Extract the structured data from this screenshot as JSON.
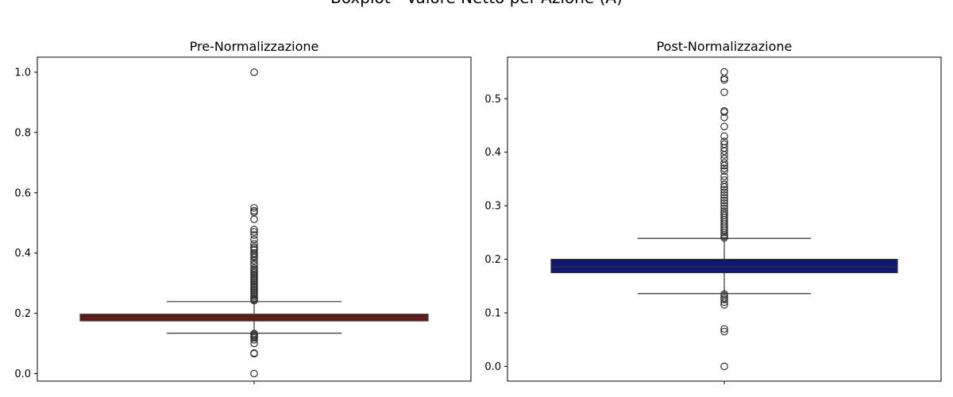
{
  "figure": {
    "title": "Boxplot - Valore Netto per Azione (A)"
  },
  "chart_data": [
    {
      "type": "boxplot",
      "title": "Pre-Normalizzazione",
      "xlabel": "",
      "ylabel": "",
      "ylim": [
        -0.025,
        1.05
      ],
      "yticks": [
        0.0,
        0.2,
        0.4,
        0.6,
        0.8,
        1.0
      ],
      "tick_labels": [
        "0.0",
        "0.2",
        "0.4",
        "0.6",
        "0.8",
        "1.0"
      ],
      "box_color": "#6b1414",
      "box": {
        "whislo": 0.134,
        "q1": 0.175,
        "median": 0.186,
        "q3": 0.197,
        "whishi": 0.239
      },
      "outliers_low": [
        0.0,
        0.066,
        0.068,
        0.1,
        0.112,
        0.118,
        0.122,
        0.126,
        0.13,
        0.133
      ],
      "outliers_high": [
        0.242,
        0.246,
        0.25,
        0.255,
        0.26,
        0.265,
        0.27,
        0.275,
        0.28,
        0.285,
        0.29,
        0.295,
        0.3,
        0.305,
        0.31,
        0.315,
        0.32,
        0.325,
        0.33,
        0.335,
        0.34,
        0.345,
        0.35,
        0.36,
        0.365,
        0.375,
        0.385,
        0.39,
        0.395,
        0.4,
        0.41,
        0.415,
        0.42,
        0.43,
        0.445,
        0.46,
        0.47,
        0.478,
        0.512,
        0.535,
        0.54,
        0.55,
        1.0
      ]
    },
    {
      "type": "boxplot",
      "title": "Post-Normalizzazione",
      "xlabel": "",
      "ylabel": "",
      "ylim": [
        -0.0275,
        0.5775
      ],
      "yticks": [
        0.0,
        0.1,
        0.2,
        0.3,
        0.4,
        0.5
      ],
      "tick_labels": [
        "0.0",
        "0.1",
        "0.2",
        "0.3",
        "0.4",
        "0.5"
      ],
      "box_color": "#101770",
      "box": {
        "whislo": 0.136,
        "q1": 0.175,
        "median": 0.186,
        "q3": 0.2,
        "whishi": 0.239
      },
      "outliers_low": [
        0.0,
        0.065,
        0.07,
        0.115,
        0.12,
        0.125,
        0.128,
        0.132,
        0.135
      ],
      "outliers_high": [
        0.24,
        0.243,
        0.246,
        0.25,
        0.254,
        0.258,
        0.262,
        0.266,
        0.27,
        0.274,
        0.278,
        0.282,
        0.286,
        0.29,
        0.295,
        0.3,
        0.305,
        0.31,
        0.315,
        0.32,
        0.325,
        0.33,
        0.335,
        0.34,
        0.348,
        0.355,
        0.365,
        0.37,
        0.375,
        0.38,
        0.388,
        0.395,
        0.402,
        0.408,
        0.415,
        0.42,
        0.43,
        0.448,
        0.465,
        0.475,
        0.477,
        0.512,
        0.535,
        0.538,
        0.55
      ]
    }
  ]
}
